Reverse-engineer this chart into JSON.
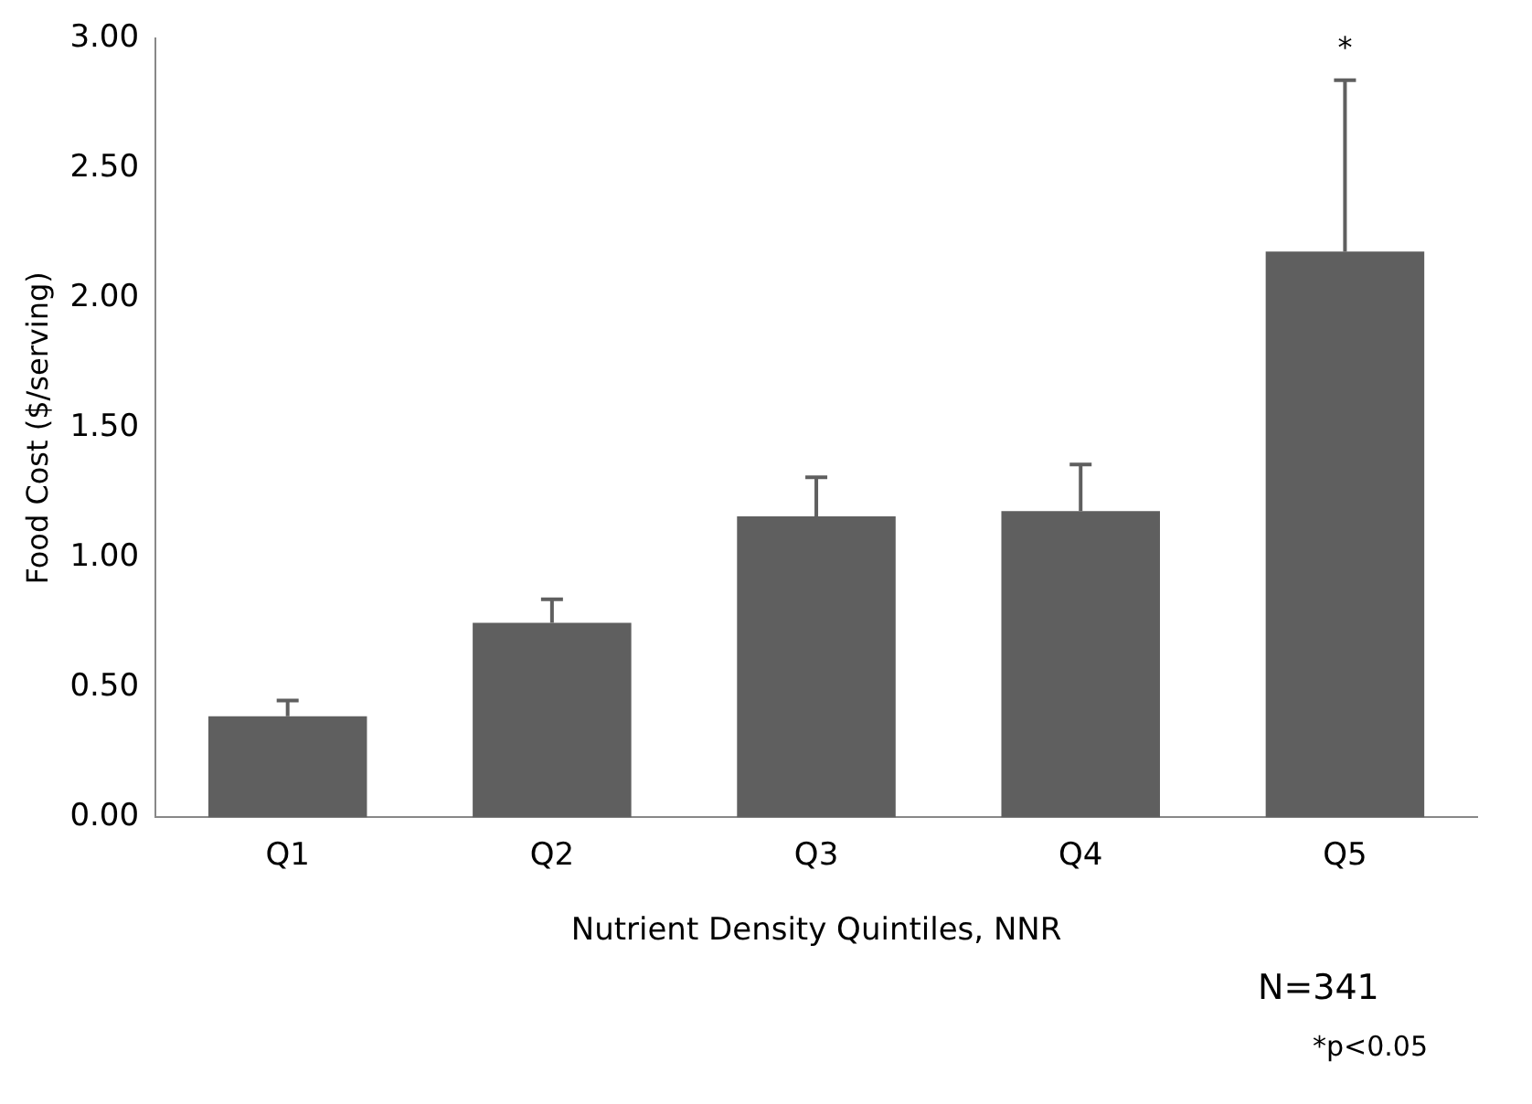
{
  "chart_data": {
    "type": "bar",
    "xlabel": "Nutrient Density Quintiles, NNR",
    "ylabel": "Food Cost ($/serving)",
    "categories": [
      "Q1",
      "Q2",
      "Q3",
      "Q4",
      "Q5"
    ],
    "values": [
      0.39,
      0.75,
      1.16,
      1.18,
      2.18
    ],
    "errors": [
      [
        0.39,
        0.45
      ],
      [
        0.75,
        0.84
      ],
      [
        1.16,
        1.31
      ],
      [
        1.18,
        1.36
      ],
      [
        2.18,
        2.84
      ]
    ],
    "color": "#5f5f5f",
    "ylim": [
      0,
      3
    ],
    "yticks": [
      {
        "value": 0,
        "label": "0.00"
      },
      {
        "value": 0.5,
        "label": "0.50"
      },
      {
        "value": 1,
        "label": "1.00"
      },
      {
        "value": 1.5,
        "label": "1.50"
      },
      {
        "value": 2,
        "label": "2.00"
      },
      {
        "value": 2.5,
        "label": "2.50"
      },
      {
        "value": 3,
        "label": "3.00"
      }
    ],
    "grid": false,
    "legend": false,
    "annotations": [
      "*",
      "N=341",
      "*p<0.05"
    ]
  }
}
